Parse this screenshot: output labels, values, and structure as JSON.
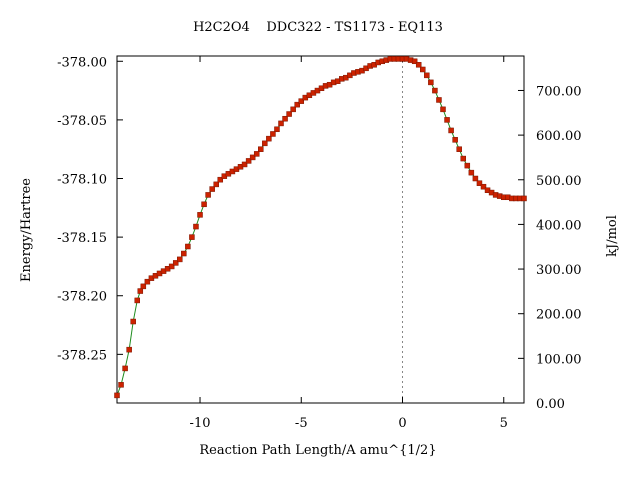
{
  "chart_data": {
    "type": "line",
    "title": "H2C2O4    DDC322 - TS1173 - EQ113",
    "xlabel": "Reaction Path Length/A amu^{1/2}",
    "ylabel": "Energy/Hartree",
    "y2label": "kJ/mol",
    "xlim": [
      -14.1,
      6.0
    ],
    "ylim": [
      -378.2915,
      -377.9955
    ],
    "y2lim": [
      0.0,
      777.2
    ],
    "x_ticks": [
      -10,
      -5,
      0,
      5
    ],
    "x_tick_labels": [
      "-10",
      "-5",
      "0",
      "5"
    ],
    "y_ticks": [
      -378.0,
      -378.05,
      -378.1,
      -378.15,
      -378.2,
      -378.25
    ],
    "y_tick_labels": [
      "-378.00",
      "-378.05",
      "-378.10",
      "-378.15",
      "-378.20",
      "-378.25"
    ],
    "y2_ticks": [
      0,
      100,
      200,
      300,
      400,
      500,
      600,
      700
    ],
    "y2_tick_labels": [
      "0.00",
      "100.00",
      "200.00",
      "300.00",
      "400.00",
      "500.00",
      "600.00",
      "700.00"
    ],
    "ts_marker_x": 0.0,
    "grid": false,
    "legend": "none",
    "line_color": "#1e8c1e",
    "marker_color": "#cc2200",
    "series": [
      {
        "x": [
          -14.1,
          -13.9,
          -13.7,
          -13.5,
          -13.3,
          -13.1,
          -12.95,
          -12.8,
          -12.6,
          -12.4,
          -12.2,
          -12.0,
          -11.8,
          -11.6,
          -11.4,
          -11.2,
          -11.0,
          -10.8,
          -10.6,
          -10.4,
          -10.2,
          -10.0,
          -9.8,
          -9.6,
          -9.4,
          -9.2,
          -9.0,
          -8.8,
          -8.6,
          -8.4,
          -8.2,
          -8.0,
          -7.8,
          -7.6,
          -7.4,
          -7.2,
          -7.0,
          -6.8,
          -6.6,
          -6.4,
          -6.2,
          -6.0,
          -5.8,
          -5.6,
          -5.4,
          -5.2,
          -5.0,
          -4.8,
          -4.6,
          -4.4,
          -4.2,
          -4.0,
          -3.8,
          -3.6,
          -3.4,
          -3.2,
          -3.0,
          -2.8,
          -2.6,
          -2.4,
          -2.2,
          -2.0,
          -1.8,
          -1.6,
          -1.4,
          -1.2,
          -1.0,
          -0.8,
          -0.6,
          -0.4,
          -0.2,
          0.0,
          0.2,
          0.4,
          0.6,
          0.8,
          1.0,
          1.2,
          1.4,
          1.6,
          1.8,
          2.0,
          2.2,
          2.4,
          2.6,
          2.8,
          3.0,
          3.2,
          3.4,
          3.6,
          3.8,
          4.0,
          4.2,
          4.4,
          4.6,
          4.8,
          5.0,
          5.2,
          5.4,
          5.6,
          5.8,
          6.0
        ],
        "values": [
          -378.285,
          -378.276,
          -378.262,
          -378.246,
          -378.222,
          -378.204,
          -378.196,
          -378.192,
          -378.188,
          -378.185,
          -378.183,
          -378.181,
          -378.179,
          -378.177,
          -378.175,
          -378.172,
          -378.169,
          -378.164,
          -378.158,
          -378.15,
          -378.141,
          -378.131,
          -378.122,
          -378.114,
          -378.109,
          -378.105,
          -378.101,
          -378.098,
          -378.096,
          -378.094,
          -378.092,
          -378.09,
          -378.088,
          -378.085,
          -378.082,
          -378.079,
          -378.075,
          -378.07,
          -378.066,
          -378.062,
          -378.058,
          -378.053,
          -378.049,
          -378.045,
          -378.041,
          -378.037,
          -378.034,
          -378.031,
          -378.029,
          -378.027,
          -378.025,
          -378.023,
          -378.021,
          -378.02,
          -378.018,
          -378.017,
          -378.015,
          -378.014,
          -378.012,
          -378.01,
          -378.009,
          -378.008,
          -378.006,
          -378.004,
          -378.003,
          -378.001,
          -378.0,
          -377.999,
          -377.998,
          -377.998,
          -377.998,
          -377.998,
          -377.998,
          -377.999,
          -378.0,
          -378.003,
          -378.007,
          -378.012,
          -378.018,
          -378.025,
          -378.033,
          -378.041,
          -378.05,
          -378.059,
          -378.067,
          -378.075,
          -378.083,
          -378.089,
          -378.095,
          -378.1,
          -378.104,
          -378.107,
          -378.11,
          -378.112,
          -378.114,
          -378.115,
          -378.116,
          -378.116,
          -378.117,
          -378.117,
          -378.117,
          -378.117
        ]
      }
    ]
  }
}
